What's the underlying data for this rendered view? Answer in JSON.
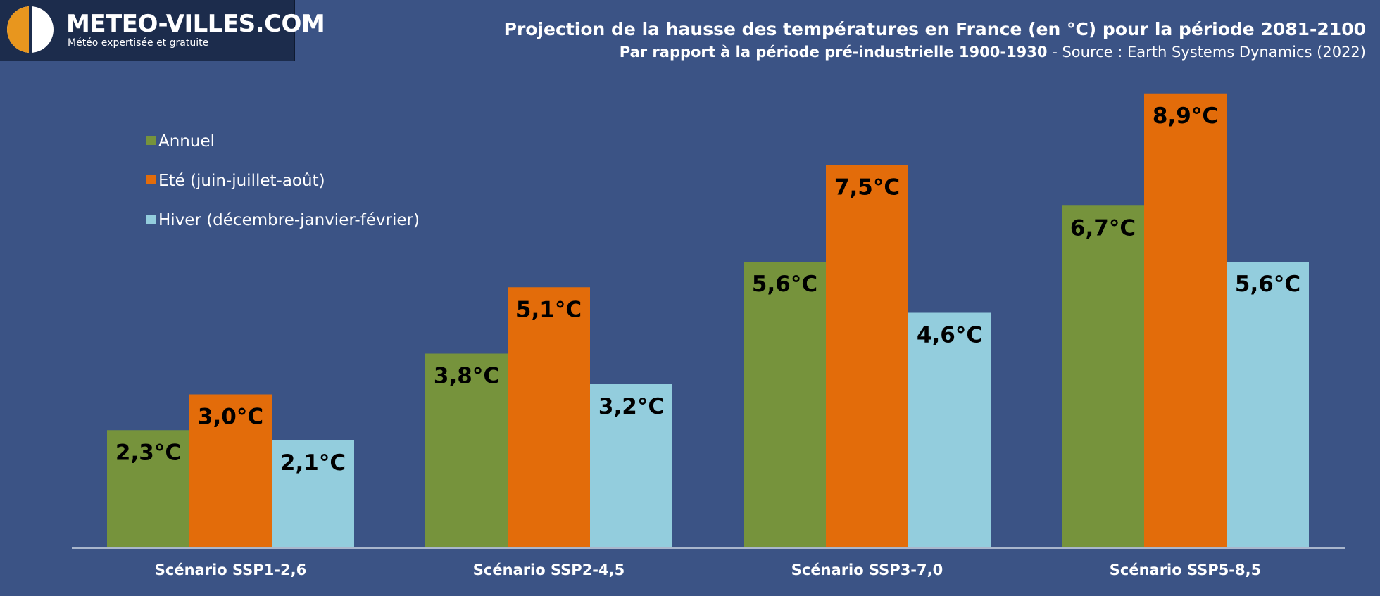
{
  "logo": {
    "name": "METEO-VILLES.COM",
    "tagline": "Météo expertisée et gratuite"
  },
  "header": {
    "title": "Projection de la hausse des températures en France (en °C) pour la période 2081-2100",
    "subtitle_main": "Par rapport à la période pré-industrielle 1900-1930",
    "subtitle_source": " - Source : Earth Systems Dynamics (2022)"
  },
  "colors": {
    "background": "#3b5385",
    "annuel": "#76933c",
    "ete": "#e36c0a",
    "hiver": "#93cddd"
  },
  "chart_data": {
    "type": "bar",
    "title": "Projection de la hausse des températures en France (en °C) pour la période 2081-2100",
    "categories": [
      "Scénario SSP1-2,6",
      "Scénario SSP2-4,5",
      "Scénario SSP3-7,0",
      "Scénario SSP5-8,5"
    ],
    "series": [
      {
        "name": "Annuel",
        "values": [
          2.3,
          3.8,
          5.6,
          6.7
        ],
        "labels": [
          "2,3°C",
          "3,8°C",
          "5,6°C",
          "6,7°C"
        ],
        "color": "#76933c"
      },
      {
        "name": "Eté (juin-juillet-août)",
        "values": [
          3.0,
          5.1,
          7.5,
          8.9
        ],
        "labels": [
          "3,0°C",
          "5,1°C",
          "7,5°C",
          "8,9°C"
        ],
        "color": "#e36c0a"
      },
      {
        "name": "Hiver (décembre-janvier-février)",
        "values": [
          2.1,
          3.2,
          4.6,
          5.6
        ],
        "labels": [
          "2,1°C",
          "3,2°C",
          "4,6°C",
          "5,6°C"
        ],
        "color": "#93cddd"
      }
    ],
    "ylim": [
      0,
      10
    ],
    "grid": false,
    "legend": "top-left"
  }
}
